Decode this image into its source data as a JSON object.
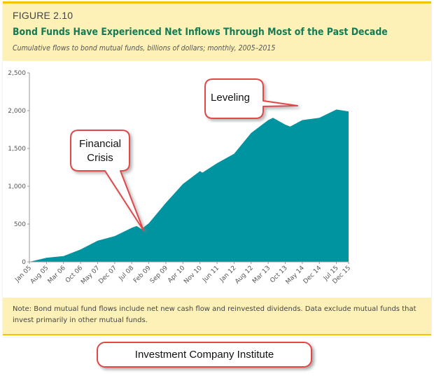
{
  "figure_label": "FIGURE 2.10",
  "chart_data": {
    "type": "area",
    "title": "Bond Funds Have Experienced Net Inflows Through Most of the Past Decade",
    "subtitle": "Cumulative flows to bond mutual funds, billions of dollars; monthly, 2005–2015",
    "xlabel": "",
    "ylabel": "",
    "ylim": [
      0,
      2500
    ],
    "yticks": [
      0,
      500,
      1000,
      1500,
      2000,
      2500
    ],
    "ytick_labels": [
      "0",
      "500",
      "1,000",
      "1,500",
      "2,000",
      "2,500"
    ],
    "xticks": [
      "Jan 05",
      "Aug 05",
      "Mar 06",
      "Oct 06",
      "May 07",
      "Dec 07",
      "Jul 08",
      "Feb 09",
      "Sep 09",
      "Apr 10",
      "Nov 10",
      "Jun 11",
      "Jan 12",
      "Aug 12",
      "Mar 13",
      "Oct 13",
      "May 14",
      "Dec 14",
      "Jul 15",
      "Dec 15"
    ],
    "grid": false,
    "color": "#0093a0",
    "points": [
      {
        "x": "Jan 05",
        "y": 0
      },
      {
        "x": "Aug 05",
        "y": 55
      },
      {
        "x": "Mar 06",
        "y": 77
      },
      {
        "x": "Oct 06",
        "y": 165
      },
      {
        "x": "May 07",
        "y": 280
      },
      {
        "x": "Dec 07",
        "y": 340
      },
      {
        "x": "Jul 08",
        "y": 450
      },
      {
        "x": "Sep 08",
        "y": 475
      },
      {
        "x": "Nov 08",
        "y": 435
      },
      {
        "x": "Feb 09",
        "y": 510
      },
      {
        "x": "Sep 09",
        "y": 780
      },
      {
        "x": "Apr 10",
        "y": 1030
      },
      {
        "x": "Nov 10",
        "y": 1200
      },
      {
        "x": "Dec 10",
        "y": 1180
      },
      {
        "x": "Jun 11",
        "y": 1305
      },
      {
        "x": "Jan 12",
        "y": 1430
      },
      {
        "x": "Aug 12",
        "y": 1705
      },
      {
        "x": "Mar 13",
        "y": 1875
      },
      {
        "x": "May 13",
        "y": 1905
      },
      {
        "x": "Oct 13",
        "y": 1815
      },
      {
        "x": "Dec 13",
        "y": 1790
      },
      {
        "x": "May 14",
        "y": 1875
      },
      {
        "x": "Dec 14",
        "y": 1905
      },
      {
        "x": "Jul 15",
        "y": 2015
      },
      {
        "x": "Dec 15",
        "y": 1990
      }
    ],
    "annotations": [
      "Financial\nCrisis",
      "Leveling"
    ]
  },
  "callouts": {
    "crisis_line1": "Financial",
    "crisis_line2": "Crisis",
    "leveling": "Leveling"
  },
  "note": "Note: Bond mutual fund flows include net new cash flow and reinvested dividends. Data exclude mutual funds that invest primarily in other mutual funds.",
  "source_label": "Investment Company Institute"
}
